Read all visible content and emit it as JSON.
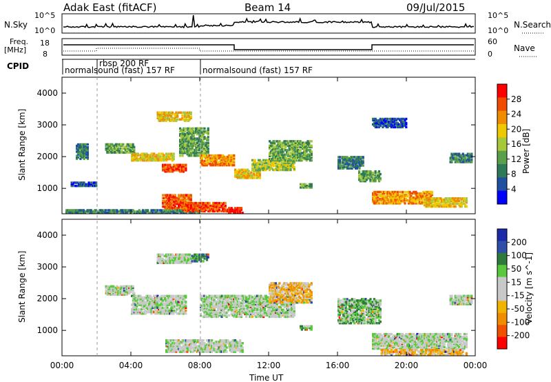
{
  "header": {
    "title_left": "Adak East (fitACF)",
    "title_center": "Beam 14",
    "title_right": "09/Jul/2015"
  },
  "params": {
    "nsky_label": "N.Sky",
    "nsky_ticks": [
      "10^5",
      "10^0"
    ],
    "nsearch_label": "N.Search",
    "freq_label": "Freq.",
    "freq_unit": "[MHz]",
    "freq_ticks": [
      "18",
      "8"
    ],
    "nave_ticks": [
      "60",
      "0"
    ],
    "nave_label": "Nave",
    "cpid_label": "CPID",
    "cpid_segments": [
      "normalsound (fast) 157 RF",
      "rbsp 200 RF",
      "normalsound (fast) 157 RF"
    ]
  },
  "colors": {
    "power": [
      "#0000ff",
      "#1e4fa0",
      "#2e7a58",
      "#5aa04a",
      "#a8c83c",
      "#f0c800",
      "#f08c00",
      "#f04c00",
      "#ff0000"
    ],
    "velocity": [
      "#1a2aa8",
      "#2e4ea8",
      "#2e7a3a",
      "#5ac83c",
      "#c8c8c8",
      "#c8c8c8",
      "#f0b400",
      "#f08c00",
      "#f05000",
      "#ff0000"
    ]
  },
  "chart_data": [
    {
      "type": "heatmap",
      "name": "power",
      "ylabel": "Slant Range [km]",
      "yticks": [
        1000,
        2000,
        3000,
        4000
      ],
      "ylim": [
        200,
        4500
      ],
      "xlim": [
        0,
        24
      ],
      "xticks": [
        "00:00",
        "04:00",
        "08:00",
        "12:00",
        "16:00",
        "20:00",
        "00:00"
      ],
      "colorbar_label": "Power [dB]",
      "colorbar_ticks": [
        "4",
        "8",
        "12",
        "16",
        "20",
        "24",
        "28"
      ],
      "bands": [
        {
          "t0": 0.2,
          "t1": 8.0,
          "r0": 200,
          "r1": 320,
          "level": 2
        },
        {
          "t0": 0.5,
          "t1": 2.0,
          "r0": 1050,
          "r1": 1200,
          "level": 1
        },
        {
          "t0": 0.8,
          "t1": 1.5,
          "r0": 1900,
          "r1": 2400,
          "level": 2
        },
        {
          "t0": 2.5,
          "t1": 4.2,
          "r0": 2100,
          "r1": 2400,
          "level": 3
        },
        {
          "t0": 4.0,
          "t1": 6.5,
          "r0": 1850,
          "r1": 2100,
          "level": 5
        },
        {
          "t0": 5.8,
          "t1": 7.2,
          "r0": 1500,
          "r1": 1750,
          "level": 7
        },
        {
          "t0": 5.5,
          "t1": 7.5,
          "r0": 3100,
          "r1": 3400,
          "level": 5
        },
        {
          "t0": 6.8,
          "t1": 8.5,
          "r0": 2000,
          "r1": 2900,
          "level": 3
        },
        {
          "t0": 5.8,
          "t1": 7.5,
          "r0": 350,
          "r1": 800,
          "level": 7
        },
        {
          "t0": 7.0,
          "t1": 9.5,
          "r0": 250,
          "r1": 550,
          "level": 7
        },
        {
          "t0": 9.5,
          "t1": 10.5,
          "r0": 200,
          "r1": 400,
          "level": 8
        },
        {
          "t0": 8.0,
          "t1": 10.0,
          "r0": 1700,
          "r1": 2050,
          "level": 6
        },
        {
          "t0": 10.0,
          "t1": 11.5,
          "r0": 1300,
          "r1": 1600,
          "level": 5
        },
        {
          "t0": 11.0,
          "t1": 13.5,
          "r0": 1550,
          "r1": 1900,
          "level": 4
        },
        {
          "t0": 12.0,
          "t1": 14.5,
          "r0": 1850,
          "r1": 2500,
          "level": 3
        },
        {
          "t0": 13.8,
          "t1": 14.5,
          "r0": 1000,
          "r1": 1150,
          "level": 3
        },
        {
          "t0": 16.0,
          "t1": 17.5,
          "r0": 1600,
          "r1": 2000,
          "level": 2
        },
        {
          "t0": 17.2,
          "t1": 18.5,
          "r0": 1200,
          "r1": 1550,
          "level": 3
        },
        {
          "t0": 18.0,
          "t1": 21.5,
          "r0": 500,
          "r1": 900,
          "level": 6
        },
        {
          "t0": 21.0,
          "t1": 23.5,
          "r0": 400,
          "r1": 700,
          "level": 5
        },
        {
          "t0": 22.5,
          "t1": 23.8,
          "r0": 1800,
          "r1": 2100,
          "level": 2
        },
        {
          "t0": 18.0,
          "t1": 20.0,
          "r0": 2900,
          "r1": 3200,
          "level": 1
        }
      ]
    },
    {
      "type": "heatmap",
      "name": "velocity",
      "ylabel": "Slant Range [km]",
      "yticks": [
        1000,
        2000,
        3000,
        4000
      ],
      "ylim": [
        200,
        4500
      ],
      "xlim": [
        0,
        24
      ],
      "xticks": [
        "00:00",
        "04:00",
        "08:00",
        "12:00",
        "16:00",
        "20:00",
        "00:00"
      ],
      "xlabel": "Time UT",
      "colorbar_label": "Velocity [m s^-1]",
      "colorbar_ticks": [
        "200",
        "100",
        "50",
        "15",
        "-15",
        "-50",
        "-100",
        "-200"
      ],
      "bands": [
        {
          "t0": 2.5,
          "t1": 4.2,
          "r0": 2100,
          "r1": 2400,
          "level": 4
        },
        {
          "t0": 4.0,
          "t1": 7.2,
          "r0": 1500,
          "r1": 2100,
          "level": 4
        },
        {
          "t0": 5.5,
          "t1": 7.5,
          "r0": 3100,
          "r1": 3400,
          "level": 4
        },
        {
          "t0": 7.5,
          "t1": 8.5,
          "r0": 3150,
          "r1": 3400,
          "level": 2
        },
        {
          "t0": 6.0,
          "t1": 10.5,
          "r0": 300,
          "r1": 700,
          "level": 4
        },
        {
          "t0": 8.0,
          "t1": 13.5,
          "r0": 1400,
          "r1": 2100,
          "level": 4
        },
        {
          "t0": 12.0,
          "t1": 14.5,
          "r0": 1850,
          "r1": 2500,
          "level": 6
        },
        {
          "t0": 13.8,
          "t1": 14.5,
          "r0": 1000,
          "r1": 1150,
          "level": 3
        },
        {
          "t0": 16.0,
          "t1": 18.5,
          "r0": 1200,
          "r1": 2000,
          "level": 3
        },
        {
          "t0": 18.0,
          "t1": 23.5,
          "r0": 400,
          "r1": 900,
          "level": 4
        },
        {
          "t0": 18.5,
          "t1": 23.5,
          "r0": 200,
          "r1": 400,
          "level": 6
        },
        {
          "t0": 22.5,
          "t1": 23.8,
          "r0": 1800,
          "r1": 2100,
          "level": 4
        }
      ]
    }
  ]
}
